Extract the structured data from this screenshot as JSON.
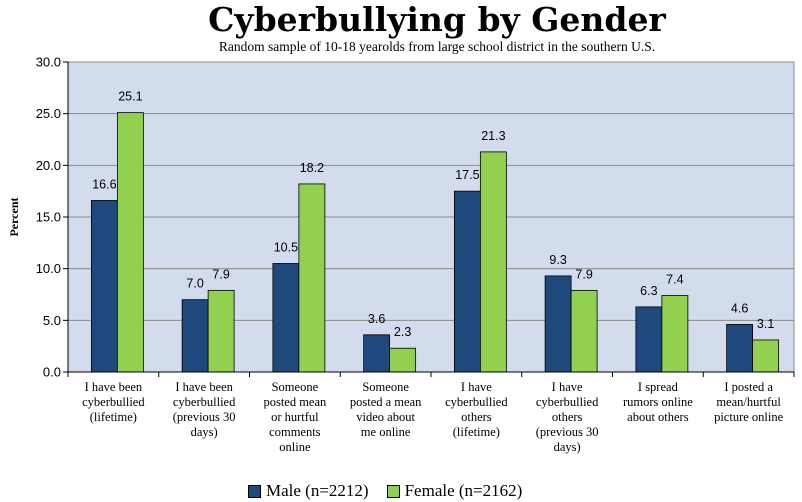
{
  "chart_data": {
    "type": "bar",
    "title": "Cyberbullying by Gender",
    "subtitle": "Random sample of  10-18 yearolds from large school district in the southern U.S.",
    "ylabel": "Percent",
    "xlabel": "",
    "ylim": [
      0,
      30
    ],
    "yticks": [
      "0.0",
      "5.0",
      "10.0",
      "15.0",
      "20.0",
      "25.0",
      "30.0"
    ],
    "grid": true,
    "legend_position": "bottom",
    "categories": [
      [
        "I have been",
        "cyberbullied",
        "(lifetime)"
      ],
      [
        "I have been",
        "cyberbullied",
        "(previous 30",
        "days)"
      ],
      [
        "Someone",
        "posted mean",
        "or hurtful",
        "comments",
        "online"
      ],
      [
        "Someone",
        "posted a mean",
        "video about",
        "me online"
      ],
      [
        "I have",
        "cyberbullied",
        "others",
        "(lifetime)"
      ],
      [
        "I have",
        "cyberbullied",
        "others",
        "(previous 30",
        "days)"
      ],
      [
        "I spread",
        "rumors online",
        "about others"
      ],
      [
        "I posted a",
        "mean/hurtful",
        "picture online"
      ]
    ],
    "series": [
      {
        "name": "Male (n=2212)",
        "color": "#1f497d",
        "values": [
          16.6,
          7.0,
          10.5,
          3.6,
          17.5,
          9.3,
          6.3,
          4.6
        ],
        "labels": [
          "16.6",
          "7.0",
          "10.5",
          "3.6",
          "17.5",
          "9.3",
          "6.3",
          "4.6"
        ]
      },
      {
        "name": "Female (n=2162)",
        "color": "#92d050",
        "values": [
          25.1,
          7.9,
          18.2,
          2.3,
          21.3,
          7.9,
          7.4,
          3.1
        ],
        "labels": [
          "25.1",
          "7.9",
          "18.2",
          "2.3",
          "21.3",
          "7.9",
          "7.4",
          "3.1"
        ]
      }
    ]
  }
}
